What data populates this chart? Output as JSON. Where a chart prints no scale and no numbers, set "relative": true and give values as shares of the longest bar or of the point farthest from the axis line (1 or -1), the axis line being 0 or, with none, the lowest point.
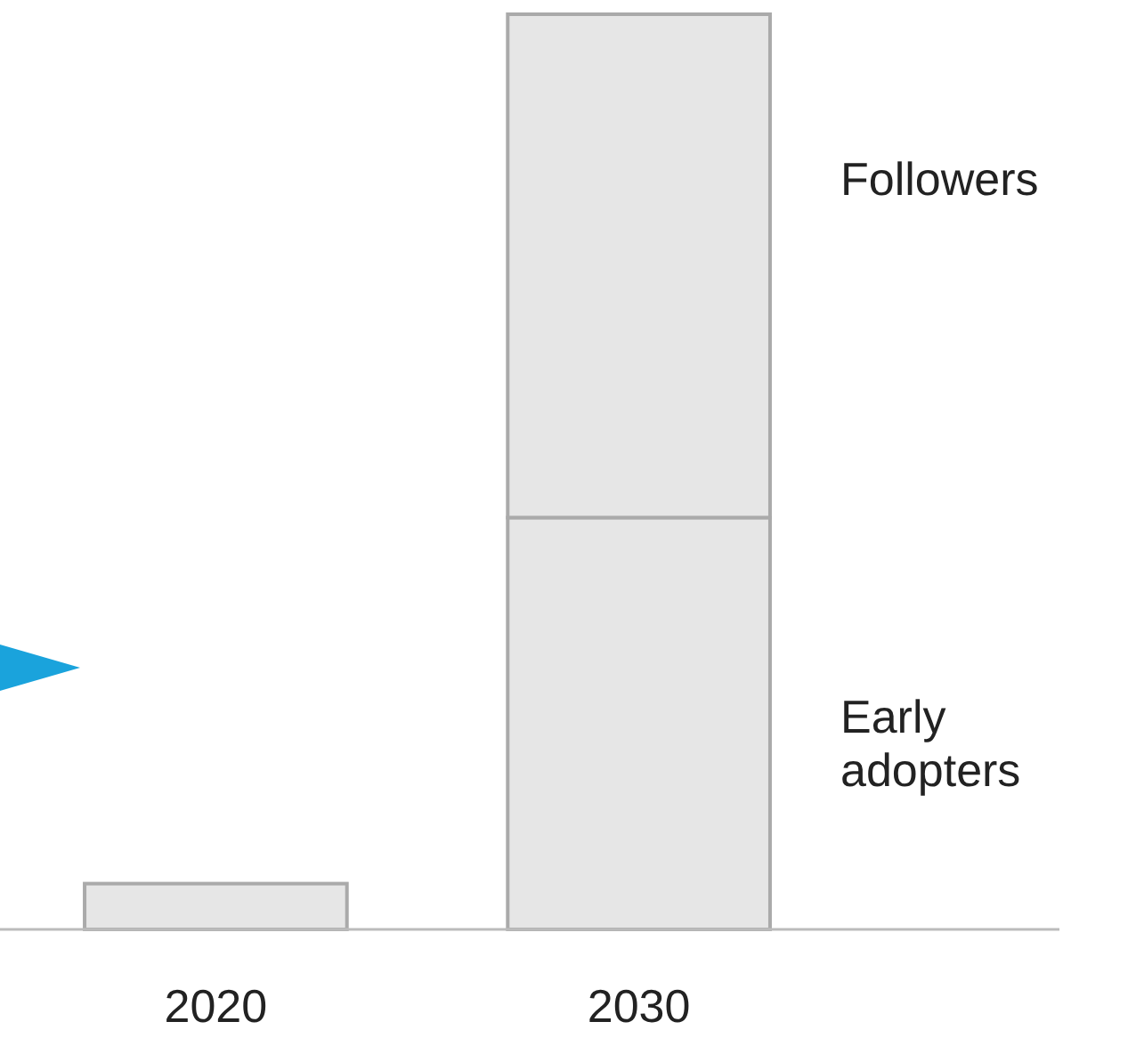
{
  "chart_data": {
    "type": "bar",
    "stacked": true,
    "relative": true,
    "legend": false,
    "categories": [
      "2020",
      "2030"
    ],
    "series": [
      {
        "name": "Early adopters",
        "color": "#e6e6e6",
        "values": [
          0.05,
          0.45
        ]
      },
      {
        "name": "Followers",
        "color": "#e6e6e6",
        "values": [
          null,
          0.55
        ]
      }
    ]
  }
}
